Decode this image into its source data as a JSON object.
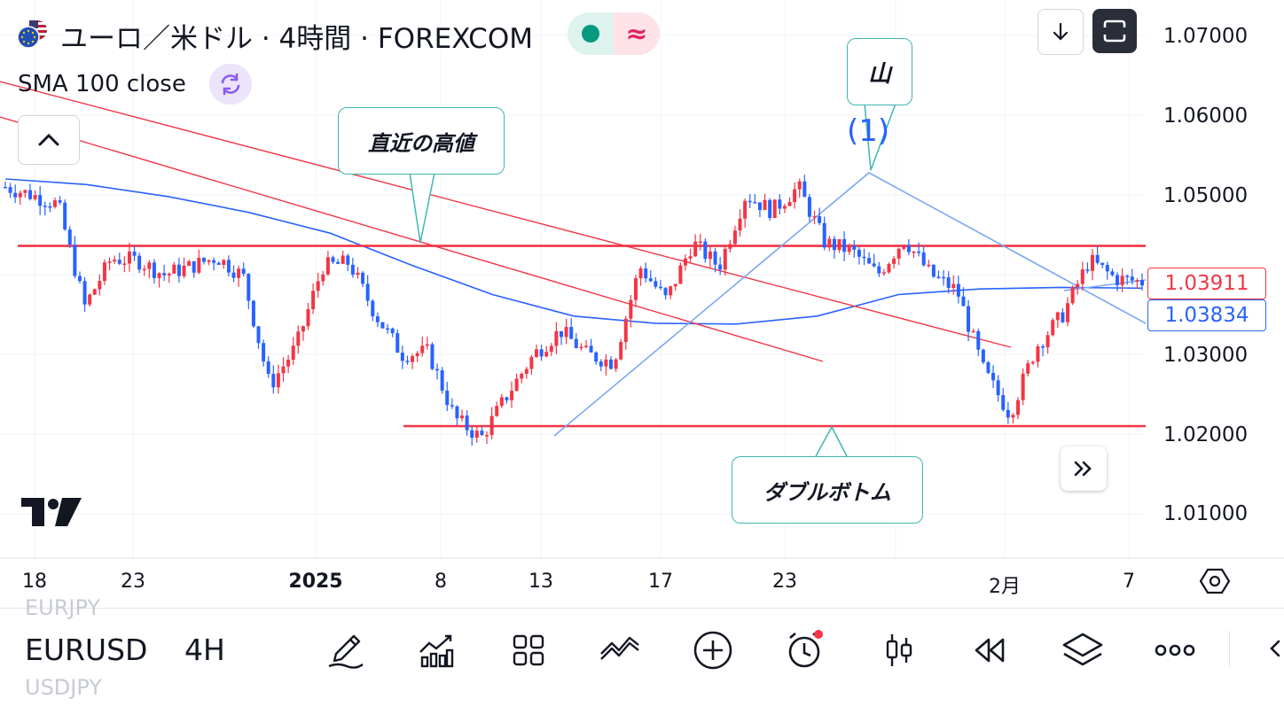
{
  "header": {
    "flag_icon": "eu-us-flag-icon",
    "title": "ユーロ／米ドル · 4時間 · FOREXCOM",
    "status_icon": "market-open-dot-icon",
    "wave_icon": "approx-wave-icon"
  },
  "indicator": {
    "label": "SMA 100 close",
    "icon": "refresh-icon"
  },
  "top_buttons": {
    "download_icon": "arrow-down-icon",
    "fullscreen_icon": "fullscreen-icon"
  },
  "price_axis": {
    "ticks": [
      "1.07000",
      "1.06000",
      "1.05000",
      "1.03000",
      "1.02000",
      "1.01000"
    ],
    "last_price": "1.03911",
    "sma_value": "1.03834",
    "last_price_color": "#f23645",
    "sma_color": "#2962ff"
  },
  "time_axis": {
    "ticks": [
      "18",
      "23",
      "2025",
      "8",
      "13",
      "17",
      "23",
      "2月",
      "7"
    ],
    "settings_icon": "hexagon-settings-icon"
  },
  "annotations": {
    "recent_high": "直近の高値",
    "mountain": "山",
    "wave_number": "(1)",
    "double_bottom": "ダブルボトム"
  },
  "logo": "tradingview-logo-icon",
  "colors": {
    "bull": "#f23645",
    "bear": "#2962ff",
    "sma": "#2962ff",
    "trend_line": "#f23645",
    "wave_line": "#7aa7f5",
    "callout_border": "#3fb6b0"
  },
  "chart_data": {
    "type": "candlestick",
    "symbol": "EURUSD",
    "interval": "4H",
    "ylim": [
      1.005,
      1.0735
    ],
    "horizontal_levels": [
      1.0436,
      1.021
    ],
    "sma_100_close": [
      1.052,
      1.0513,
      1.0498,
      1.0478,
      1.0452,
      1.0412,
      1.0375,
      1.0348,
      1.0339,
      1.0338,
      1.0348,
      1.0375,
      1.0382,
      1.0384,
      1.0383
    ],
    "close_path": [
      1.051,
      1.05,
      1.0488,
      1.036,
      1.042,
      1.0418,
      1.04,
      1.041,
      1.0422,
      1.0398,
      1.026,
      1.031,
      1.041,
      1.0415,
      1.035,
      1.03,
      1.0303,
      1.022,
      1.0195,
      1.025,
      1.03,
      1.033,
      1.03,
      1.029,
      1.041,
      1.0368,
      1.044,
      1.041,
      1.05,
      1.048,
      1.051,
      1.044,
      1.043,
      1.04,
      1.0445,
      1.04,
      1.038,
      1.028,
      1.0225,
      1.031,
      1.035,
      1.0418,
      1.0395,
      1.0391
    ]
  }
}
